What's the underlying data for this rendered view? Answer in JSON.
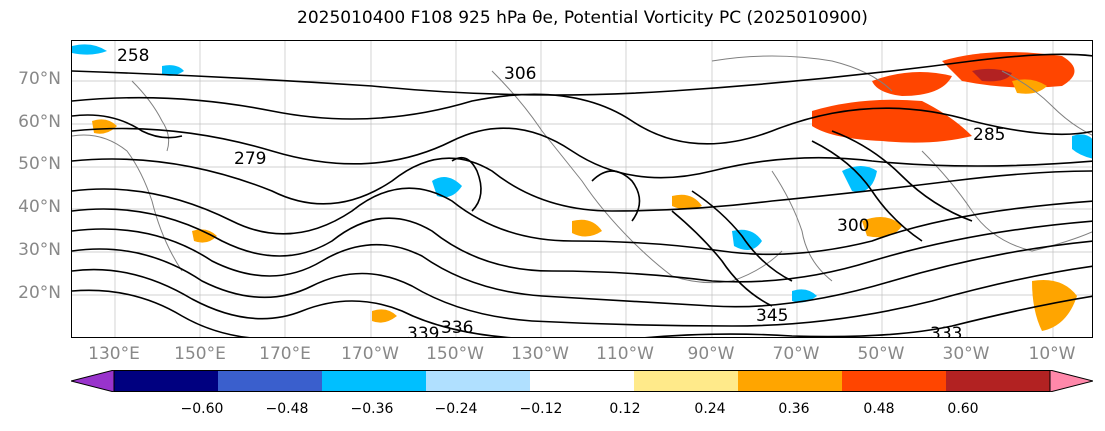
{
  "title": "2025010400 F108 925 hPa θe, Potential Vorticity PC (2025010900)",
  "map": {
    "lat_labels": [
      "70°N",
      "60°N",
      "50°N",
      "40°N",
      "30°N",
      "20°N"
    ],
    "lon_labels": [
      "130°E",
      "150°E",
      "170°E",
      "170°W",
      "150°W",
      "130°W",
      "110°W",
      "90°W",
      "70°W",
      "50°W",
      "30°W",
      "10°W"
    ],
    "contour_labels": [
      "258",
      "279",
      "285",
      "336",
      "339",
      "333",
      "345",
      "306",
      "300"
    ],
    "contour_color": "#000000",
    "coastline_color": "#808080"
  },
  "colorbar": {
    "levels": [
      "−0.60",
      "−0.48",
      "−0.36",
      "−0.24",
      "−0.12",
      "0.12",
      "0.24",
      "0.36",
      "0.48",
      "0.60"
    ],
    "colors": [
      "#9933cc",
      "#000080",
      "#3a5fcd",
      "#00bfff",
      "#b0e0ff",
      "#ffffff",
      "#ffea8a",
      "#ffa500",
      "#ff4500",
      "#b22222",
      "#ff88aa"
    ]
  }
}
